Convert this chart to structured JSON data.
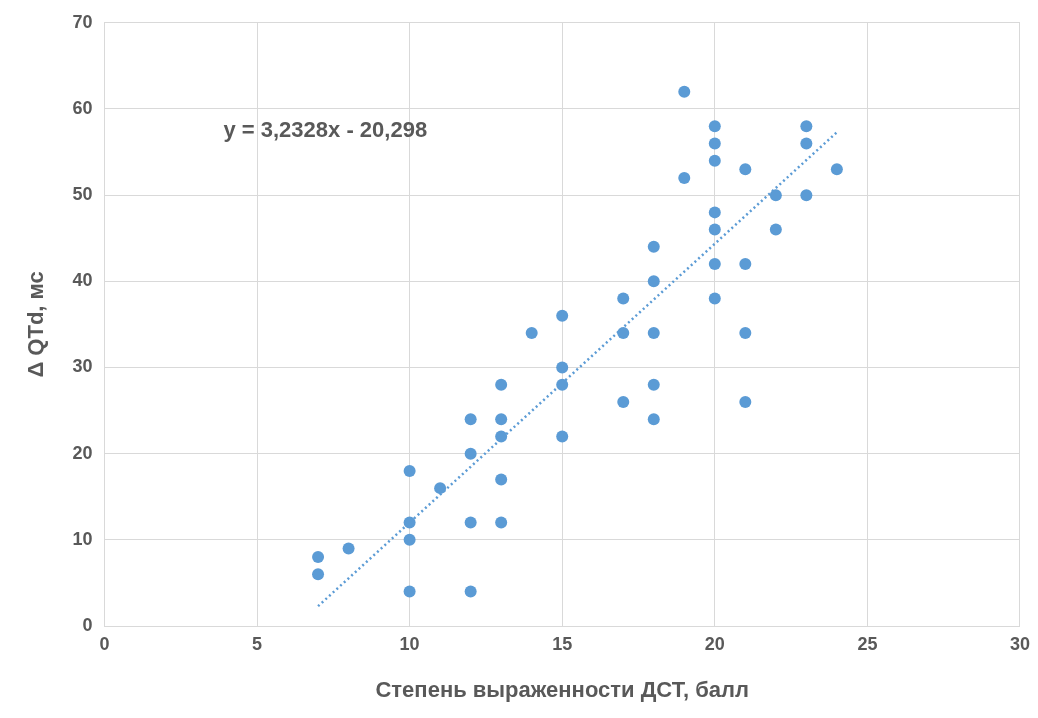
{
  "chart_data": {
    "type": "scatter",
    "xlabel": "Степень выраженности ДСТ, балл",
    "ylabel": "Δ QTd, мс",
    "annotations": [
      "y = 3,2328x - 20,298"
    ],
    "xlim": [
      0,
      30
    ],
    "xticks": [
      0,
      5,
      10,
      15,
      20,
      25,
      30
    ],
    "ylim": [
      0,
      70
    ],
    "yticks": [
      0,
      10,
      20,
      30,
      40,
      50,
      60,
      70
    ],
    "grid": true,
    "legend": false,
    "marker": "circle",
    "series": [
      {
        "color": "#5b9bd5",
        "x": [
          7,
          7,
          8,
          10,
          10,
          10,
          10,
          11,
          12,
          12,
          12,
          12,
          13,
          13,
          13,
          13,
          13,
          14,
          15,
          15,
          15,
          15,
          17,
          17,
          17,
          18,
          18,
          18,
          18,
          18,
          19,
          19,
          20,
          20,
          20,
          20,
          20,
          20,
          20,
          21,
          21,
          21,
          21,
          22,
          22,
          23,
          23,
          23,
          24
        ],
        "values": [
          8,
          6,
          9,
          18,
          12,
          10,
          4,
          16,
          24,
          20,
          12,
          4,
          28,
          24,
          22,
          17,
          12,
          34,
          36,
          30,
          28,
          22,
          38,
          34,
          26,
          44,
          40,
          34,
          28,
          24,
          62,
          52,
          58,
          56,
          54,
          48,
          46,
          42,
          38,
          53,
          42,
          34,
          26,
          50,
          46,
          58,
          56,
          50,
          53
        ]
      },
      {
        "type": "line",
        "line_style": "dotted",
        "marker": "none",
        "color": "#5b9bd5",
        "x": [
          7,
          24
        ],
        "values": [
          2.3,
          57.3
        ]
      }
    ]
  }
}
